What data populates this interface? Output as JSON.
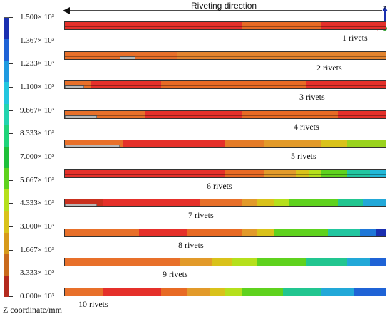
{
  "direction_label": "Riveting direction",
  "axis_title": "Z coordinate/mm",
  "triad": {
    "z_label": "z",
    "x_label": "x"
  },
  "legend": {
    "ticks": [
      "1.500× 10³",
      "1.367× 10³",
      "1.233× 10³",
      "1.100× 10³",
      "9.667× 10³",
      "8.333× 10³",
      "7.000× 10³",
      "5.667× 10³",
      "4.333× 10³",
      "3.000× 10³",
      "1.667× 10³",
      "3.333× 10³",
      "0.000× 10³"
    ],
    "colors": [
      "#1a2fb0",
      "#1f63d6",
      "#1f9ae0",
      "#22c6df",
      "#22d4b0",
      "#1fd47a",
      "#1fc03a",
      "#5fd21e",
      "#b5e01c",
      "#d9c21a",
      "#d79a1a",
      "#c96a1c",
      "#b42a1e"
    ]
  },
  "beams": [
    {
      "label": "1 rivets",
      "segments": [
        [
          "#e5302a",
          0.55
        ],
        [
          "#e86a24",
          0.8
        ],
        [
          "#e5302a",
          1.0
        ]
      ],
      "gray": []
    },
    {
      "label": "2 rivets",
      "segments": [
        [
          "#e8702a",
          0.35
        ],
        [
          "#e4842e",
          1.0
        ]
      ],
      "gray": [
        [
          0.17,
          0.22
        ]
      ]
    },
    {
      "label": "3 rivets",
      "segments": [
        [
          "#e8702a",
          0.08
        ],
        [
          "#e5302a",
          0.3
        ],
        [
          "#e86a24",
          0.75
        ],
        [
          "#e5302a",
          1.0
        ]
      ],
      "gray": [
        [
          0.0,
          0.06
        ]
      ]
    },
    {
      "label": "4 rivets",
      "segments": [
        [
          "#e8702a",
          0.25
        ],
        [
          "#e5302a",
          0.55
        ],
        [
          "#e86a24",
          0.85
        ],
        [
          "#e5302a",
          1.0
        ]
      ],
      "gray": [
        [
          0.0,
          0.1
        ]
      ]
    },
    {
      "label": "5 rivets",
      "segments": [
        [
          "#e8702a",
          0.18
        ],
        [
          "#e5302a",
          0.5
        ],
        [
          "#e47c28",
          0.62
        ],
        [
          "#e29a2a",
          0.8
        ],
        [
          "#d9c21a",
          0.88
        ],
        [
          "#9ad31e",
          1.0
        ]
      ],
      "gray": [
        [
          0.0,
          0.17
        ]
      ]
    },
    {
      "label": "6 rivets",
      "segments": [
        [
          "#e5302a",
          0.5
        ],
        [
          "#e86a24",
          0.62
        ],
        [
          "#e29a2a",
          0.72
        ],
        [
          "#d9c21a",
          0.76
        ],
        [
          "#b5e01c",
          0.8
        ],
        [
          "#5fd21e",
          0.88
        ],
        [
          "#22c6a0",
          0.95
        ],
        [
          "#22b8d8",
          1.0
        ]
      ],
      "gray": []
    },
    {
      "label": "7 rivets",
      "segments": [
        [
          "#c9301e",
          0.12
        ],
        [
          "#e5302a",
          0.42
        ],
        [
          "#e8702a",
          0.55
        ],
        [
          "#e29a2a",
          0.6
        ],
        [
          "#d9c21a",
          0.65
        ],
        [
          "#b5e01c",
          0.7
        ],
        [
          "#5fd21e",
          0.85
        ],
        [
          "#22c690",
          0.93
        ],
        [
          "#22a8d8",
          1.0
        ]
      ],
      "gray": [
        [
          0.0,
          0.1
        ]
      ]
    },
    {
      "label": "8 rivets",
      "segments": [
        [
          "#e8702a",
          0.23
        ],
        [
          "#e5302a",
          0.38
        ],
        [
          "#e86a24",
          0.55
        ],
        [
          "#e29a2a",
          0.6
        ],
        [
          "#d9c21a",
          0.65
        ],
        [
          "#5fd21e",
          0.82
        ],
        [
          "#22c6a0",
          0.92
        ],
        [
          "#1f78d8",
          0.97
        ],
        [
          "#1a2fb0",
          1.0
        ]
      ],
      "gray": []
    },
    {
      "label": "9 rivets",
      "segments": [
        [
          "#e8702a",
          0.36
        ],
        [
          "#e29a2a",
          0.46
        ],
        [
          "#d9c21a",
          0.52
        ],
        [
          "#b5e01c",
          0.6
        ],
        [
          "#5fd21e",
          0.75
        ],
        [
          "#22c690",
          0.88
        ],
        [
          "#22a8d8",
          0.95
        ],
        [
          "#1f63d6",
          1.0
        ]
      ],
      "gray": []
    },
    {
      "label": "10 rivets",
      "segments": [
        [
          "#e8702a",
          0.12
        ],
        [
          "#e5302a",
          0.3
        ],
        [
          "#e86a24",
          0.38
        ],
        [
          "#e29a2a",
          0.45
        ],
        [
          "#d9c21a",
          0.5
        ],
        [
          "#b5e01c",
          0.55
        ],
        [
          "#5fd21e",
          0.68
        ],
        [
          "#22c690",
          0.8
        ],
        [
          "#22a8d8",
          0.9
        ],
        [
          "#1f63d6",
          1.0
        ]
      ],
      "gray": []
    }
  ]
}
